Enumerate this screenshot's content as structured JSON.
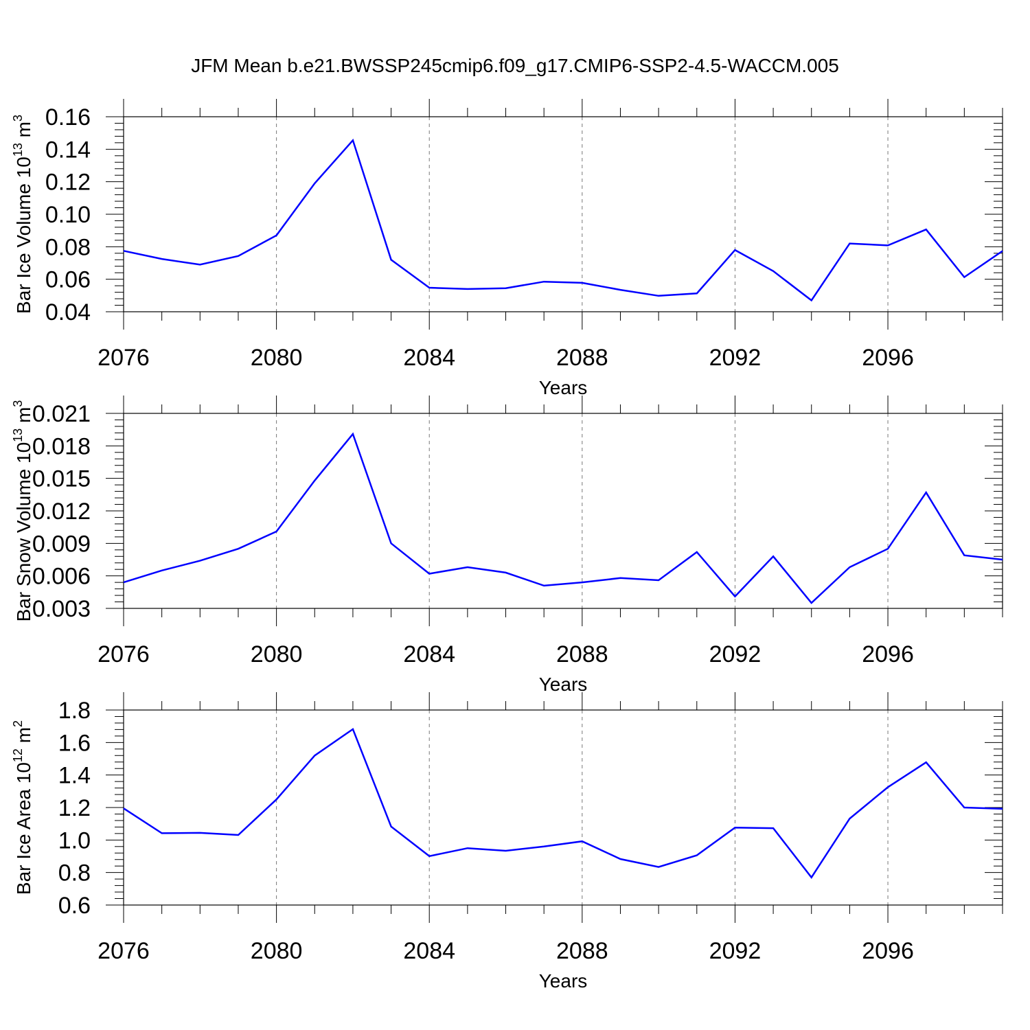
{
  "title": "JFM Mean b.e21.BWSSP245cmip6.f09_g17.CMIP6-SSP2-4.5-WACCM.005",
  "line_color": "#0000ff",
  "chart_data": [
    {
      "type": "line",
      "ylabel": "Bar Ice Volume 10",
      "ylabel_exp": "13",
      "ylabel_unit": " m",
      "ylabel_unit_exp": "3",
      "xlabel": "Years",
      "xlim": [
        2076,
        2099
      ],
      "ylim": [
        0.04,
        0.16
      ],
      "yticks": [
        "0.04",
        "0.06",
        "0.08",
        "0.10",
        "0.12",
        "0.14",
        "0.16"
      ],
      "xticks": [
        "2076",
        "2080",
        "2084",
        "2088",
        "2092",
        "2096"
      ],
      "x": [
        2076,
        2077,
        2078,
        2079,
        2080,
        2081,
        2082,
        2083,
        2084,
        2085,
        2086,
        2087,
        2088,
        2089,
        2090,
        2091,
        2092,
        2093,
        2094,
        2095,
        2096,
        2097,
        2098,
        2099
      ],
      "series": [
        {
          "values": [
            0.0775,
            0.0725,
            0.069,
            0.0743,
            0.087,
            0.119,
            0.1455,
            0.072,
            0.0548,
            0.054,
            0.0545,
            0.0585,
            0.0578,
            0.0535,
            0.0498,
            0.0513,
            0.078,
            0.065,
            0.047,
            0.082,
            0.0808,
            0.0906,
            0.0613,
            0.0774
          ]
        }
      ]
    },
    {
      "type": "line",
      "ylabel": "Bar Snow Volume 10",
      "ylabel_exp": "13",
      "ylabel_unit": " m",
      "ylabel_unit_exp": "3",
      "xlabel": "Years",
      "xlim": [
        2076,
        2099
      ],
      "ylim": [
        0.003,
        0.021
      ],
      "yticks": [
        "0.003",
        "0.006",
        "0.009",
        "0.012",
        "0.015",
        "0.018",
        "0.021"
      ],
      "xticks": [
        "2076",
        "2080",
        "2084",
        "2088",
        "2092",
        "2096"
      ],
      "x": [
        2076,
        2077,
        2078,
        2079,
        2080,
        2081,
        2082,
        2083,
        2084,
        2085,
        2086,
        2087,
        2088,
        2089,
        2090,
        2091,
        2092,
        2093,
        2094,
        2095,
        2096,
        2097,
        2098,
        2099
      ],
      "series": [
        {
          "values": [
            0.0054,
            0.0065,
            0.0074,
            0.0085,
            0.0101,
            0.0148,
            0.0191,
            0.009,
            0.0062,
            0.0068,
            0.0063,
            0.0051,
            0.0054,
            0.0058,
            0.0056,
            0.0082,
            0.0041,
            0.0078,
            0.0035,
            0.0068,
            0.0085,
            0.0137,
            0.0079,
            0.0075
          ]
        }
      ]
    },
    {
      "type": "line",
      "ylabel": "Bar Ice Area 10",
      "ylabel_exp": "12",
      "ylabel_unit": " m",
      "ylabel_unit_exp": "2",
      "xlabel": "Years",
      "xlim": [
        2076,
        2099
      ],
      "ylim": [
        0.6,
        1.8
      ],
      "yticks": [
        "0.6",
        "0.8",
        "1.0",
        "1.2",
        "1.4",
        "1.6",
        "1.8"
      ],
      "xticks": [
        "2076",
        "2080",
        "2084",
        "2088",
        "2092",
        "2096"
      ],
      "x": [
        2076,
        2077,
        2078,
        2079,
        2080,
        2081,
        2082,
        2083,
        2084,
        2085,
        2086,
        2087,
        2088,
        2089,
        2090,
        2091,
        2092,
        2093,
        2094,
        2095,
        2096,
        2097,
        2098,
        2099
      ],
      "series": [
        {
          "values": [
            1.195,
            1.042,
            1.044,
            1.031,
            1.25,
            1.52,
            1.682,
            1.083,
            0.901,
            0.95,
            0.934,
            0.96,
            0.992,
            0.883,
            0.834,
            0.906,
            1.076,
            1.073,
            0.77,
            1.132,
            1.325,
            1.478,
            1.2,
            1.192
          ]
        }
      ]
    }
  ]
}
